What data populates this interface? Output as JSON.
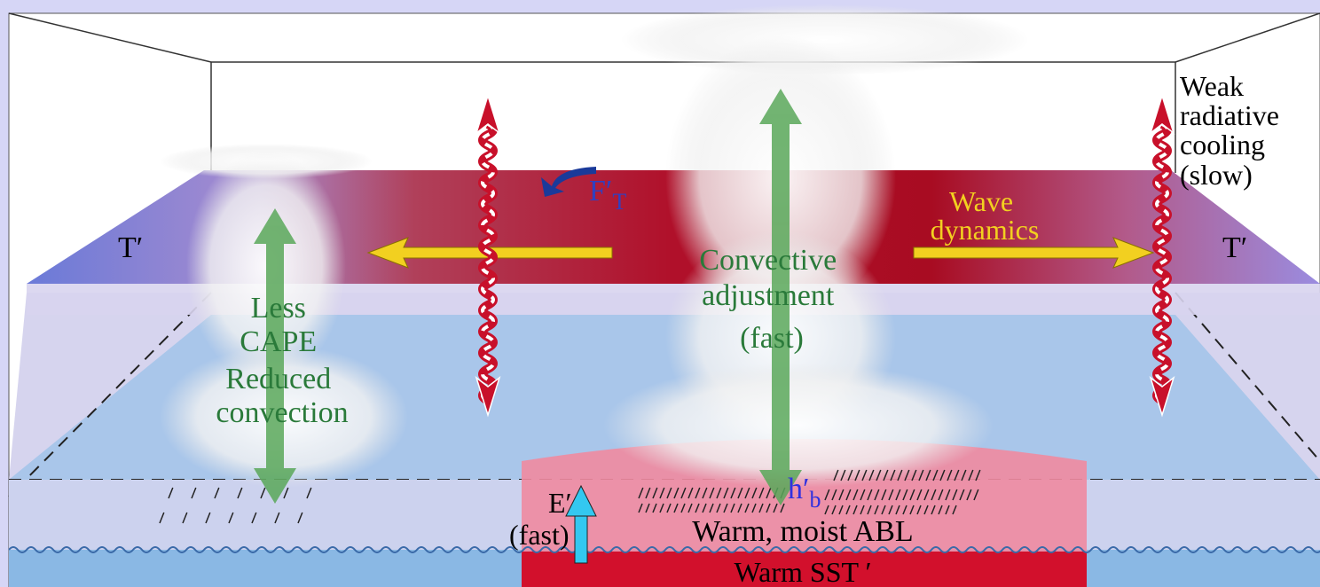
{
  "labels": {
    "weak_cooling": [
      "Weak",
      "radiative",
      "cooling",
      "(slow)"
    ],
    "flux": {
      "main": "F′",
      "sub": "T"
    },
    "wave": [
      "Wave",
      "dynamics"
    ],
    "t_left": "T′",
    "t_right": "T′",
    "convective": [
      "Convective",
      "adjustment",
      "(fast)"
    ],
    "less_cape": [
      "Less",
      "CAPE",
      "Reduced",
      "convection"
    ],
    "hb": {
      "main": "h′",
      "sub": "b"
    },
    "evap": [
      "E′",
      "(fast)"
    ],
    "abl": "Warm, moist ABL",
    "sst": "Warm SST ′"
  }
}
